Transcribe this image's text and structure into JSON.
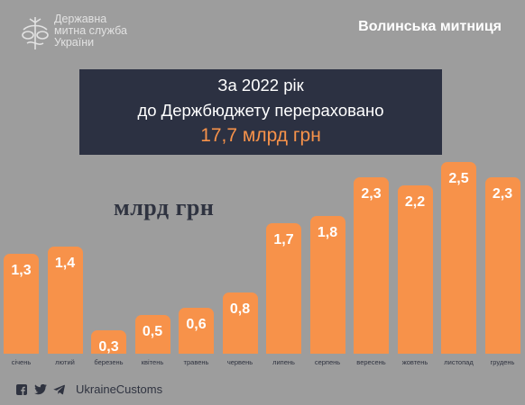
{
  "header": {
    "logo_lines": [
      "Державна",
      "митна служба",
      "України"
    ],
    "region": "Волинська митниця"
  },
  "headline": {
    "line1": "За 2022 рік",
    "line2": "до  Держбюджету перераховано",
    "amount": "17,7 млрд грн"
  },
  "unit_label": "млрд грн",
  "footer": {
    "icons": [
      "facebook-icon",
      "twitter-icon",
      "telegram-icon"
    ],
    "handle": "UkraineCustoms"
  },
  "colors": {
    "background": "#9d9d9d",
    "bar": "#f7924a",
    "panel": "#2c3142",
    "amount": "#f7924a"
  },
  "chart_data": {
    "type": "bar",
    "categories": [
      "січень",
      "лютий",
      "березень",
      "квітень",
      "травень",
      "червень",
      "липень",
      "серпень",
      "вересень",
      "жовтень",
      "листопад",
      "грудень"
    ],
    "values": [
      1.3,
      1.4,
      0.3,
      0.5,
      0.6,
      0.8,
      1.7,
      1.8,
      2.3,
      2.2,
      2.5,
      2.3
    ],
    "value_labels": [
      "1,3",
      "1,4",
      "0,3",
      "0,5",
      "0,6",
      "0,8",
      "1,7",
      "1,8",
      "2,3",
      "2,2",
      "2,5",
      "2,3"
    ],
    "title": "",
    "xlabel": "",
    "ylabel": "млрд грн",
    "grid": false,
    "legend": "none"
  }
}
